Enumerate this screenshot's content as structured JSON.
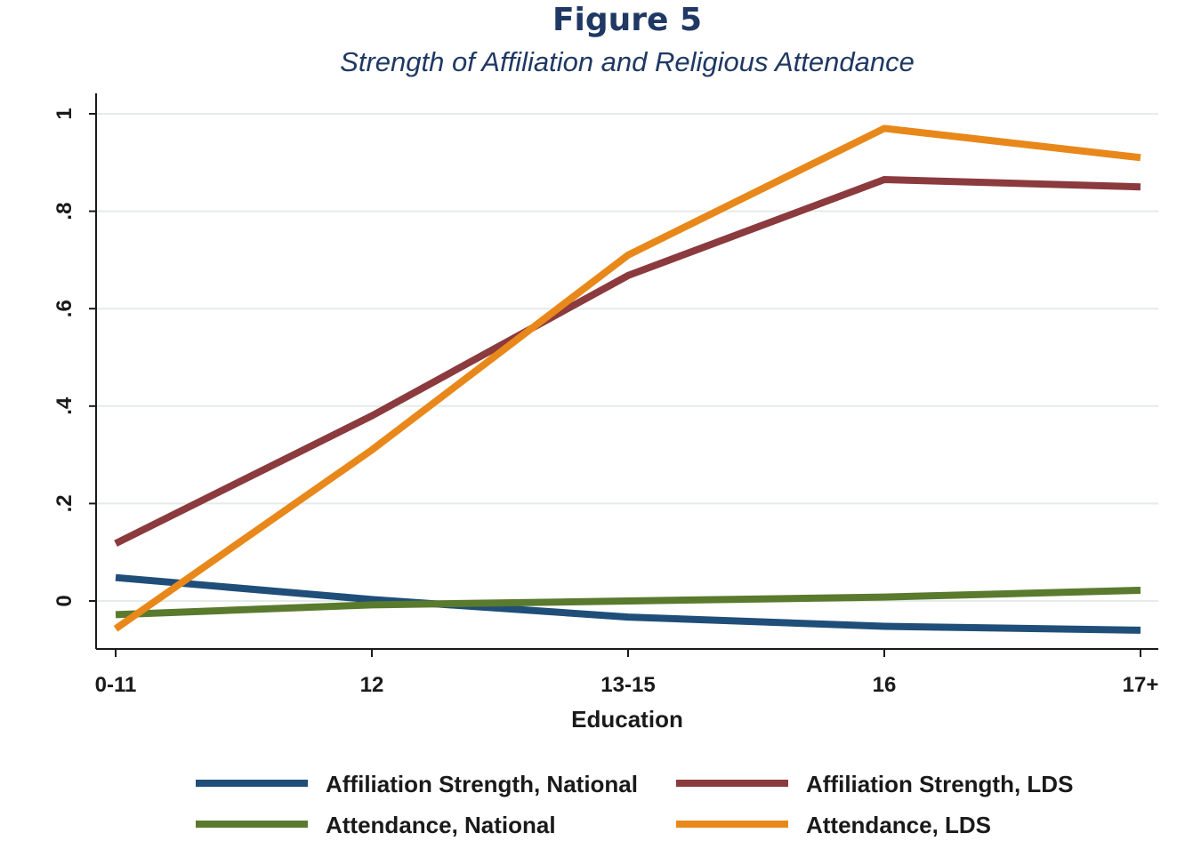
{
  "figure": {
    "title": "Figure 5",
    "subtitle": "Strength of Affiliation and Religious Attendance"
  },
  "chart_data": {
    "type": "line",
    "title": "Figure 5",
    "subtitle": "Strength of Affiliation and Religious Attendance",
    "xlabel": "Education",
    "ylabel": "",
    "categories": [
      "0-11",
      "12",
      "13-15",
      "16",
      "17+"
    ],
    "ylim": [
      -0.1,
      1.04
    ],
    "yticks": [
      0,
      0.2,
      0.4,
      0.6,
      0.8,
      1
    ],
    "ytick_labels": [
      "0",
      ".2",
      ".4",
      ".6",
      ".8",
      "1"
    ],
    "grid": true,
    "legend_position": "bottom",
    "series": [
      {
        "name": "Affiliation Strength, National",
        "color": "#1f4e79",
        "values": [
          0.048,
          0.003,
          -0.033,
          -0.052,
          -0.06
        ]
      },
      {
        "name": "Affiliation Strength, LDS",
        "color": "#8b3a3e",
        "values": [
          0.118,
          0.38,
          0.668,
          0.865,
          0.85
        ]
      },
      {
        "name": "Attendance, National",
        "color": "#5a7a2e",
        "values": [
          -0.028,
          -0.008,
          0.0,
          0.008,
          0.022
        ]
      },
      {
        "name": "Attendance, LDS",
        "color": "#e8881a",
        "values": [
          -0.057,
          0.31,
          0.71,
          0.97,
          0.91
        ]
      }
    ]
  }
}
